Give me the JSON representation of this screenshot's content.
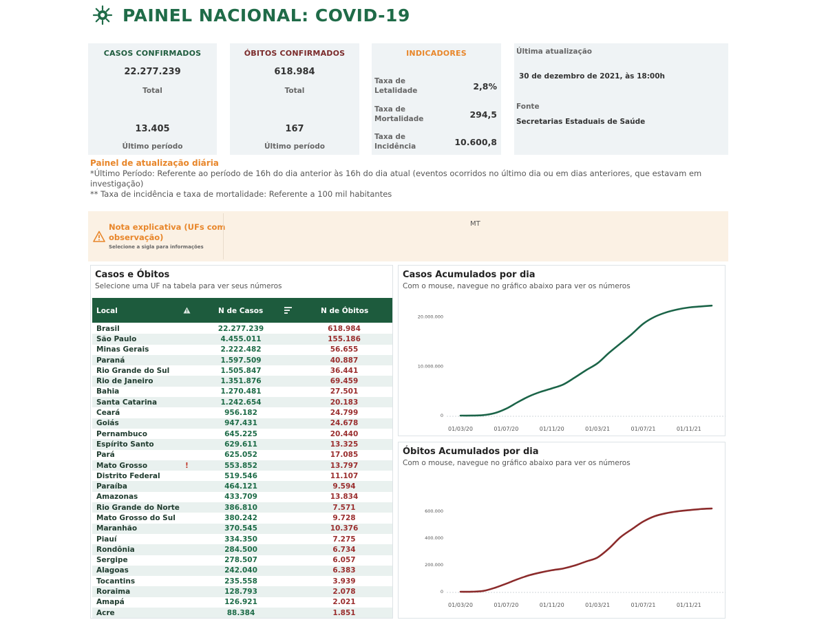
{
  "header": {
    "title": "PAINEL NACIONAL: COVID-19",
    "logo_icon": "virus-icon"
  },
  "cards": {
    "casos": {
      "title": "CASOS CONFIRMADOS",
      "total": "22.277.239",
      "total_label": "Total",
      "ultimo": "13.405",
      "ultimo_label": "Último período",
      "color": "#1f5c3e"
    },
    "obitos": {
      "title": "ÓBITOS CONFIRMADOS",
      "total": "618.984",
      "total_label": "Total",
      "ultimo": "167",
      "ultimo_label": "Último período",
      "color": "#7a2a2a"
    },
    "indicadores": {
      "title": "INDICADORES",
      "color": "#e8862a",
      "rows": [
        {
          "label": "Taxa de Letalidade",
          "value": "2,8%"
        },
        {
          "label": "Taxa de Mortalidade",
          "value": "294,5"
        },
        {
          "label": "Taxa de Incidência",
          "value": "10.600,8"
        }
      ]
    },
    "atualizacao": {
      "label": "Última atualização",
      "value": "30 de dezembro de 2021, às 18:00h",
      "fonte_label": "Fonte",
      "fonte": "Secretarias Estaduais de Saúde"
    }
  },
  "notes": {
    "title": "Painel de atualização diária",
    "line1": "*Último Período: Referente ao período de 16h do dia anterior às 16h do dia atual (eventos ocorridos no último dia ou em dias anteriores, que estavam em investigação)",
    "line2": "** Taxa de incidência e taxa de mortalidade: Referente a 100 mil habitantes"
  },
  "nota": {
    "title": "Nota explicativa (UFs com observação)",
    "subtitle": "Selecione a sigla para informações",
    "selected": "MT"
  },
  "table_panel": {
    "title": "Casos e Óbitos",
    "subtitle": "Selecione uma UF na tabela para ver seus números",
    "columns": {
      "local": "Local",
      "casos": "N de Casos",
      "obitos": "N de Óbitos"
    },
    "rows": [
      {
        "local": "Brasil",
        "casos": "22.277.239",
        "obitos": "618.984",
        "flag": ""
      },
      {
        "local": "São Paulo",
        "casos": "4.455.011",
        "obitos": "155.186",
        "flag": ""
      },
      {
        "local": "Minas Gerais",
        "casos": "2.222.482",
        "obitos": "56.655",
        "flag": ""
      },
      {
        "local": "Paraná",
        "casos": "1.597.509",
        "obitos": "40.887",
        "flag": ""
      },
      {
        "local": "Rio Grande do Sul",
        "casos": "1.505.847",
        "obitos": "36.441",
        "flag": ""
      },
      {
        "local": "Rio de Janeiro",
        "casos": "1.351.876",
        "obitos": "69.459",
        "flag": ""
      },
      {
        "local": "Bahia",
        "casos": "1.270.481",
        "obitos": "27.501",
        "flag": ""
      },
      {
        "local": "Santa Catarina",
        "casos": "1.242.654",
        "obitos": "20.183",
        "flag": ""
      },
      {
        "local": "Ceará",
        "casos": "956.182",
        "obitos": "24.799",
        "flag": ""
      },
      {
        "local": "Goiás",
        "casos": "947.431",
        "obitos": "24.678",
        "flag": ""
      },
      {
        "local": "Pernambuco",
        "casos": "645.225",
        "obitos": "20.440",
        "flag": ""
      },
      {
        "local": "Espírito Santo",
        "casos": "629.611",
        "obitos": "13.325",
        "flag": ""
      },
      {
        "local": "Pará",
        "casos": "625.052",
        "obitos": "17.085",
        "flag": ""
      },
      {
        "local": "Mato Grosso",
        "casos": "553.852",
        "obitos": "13.797",
        "flag": "!"
      },
      {
        "local": "Distrito Federal",
        "casos": "519.546",
        "obitos": "11.107",
        "flag": ""
      },
      {
        "local": "Paraíba",
        "casos": "464.121",
        "obitos": "9.594",
        "flag": ""
      },
      {
        "local": "Amazonas",
        "casos": "433.709",
        "obitos": "13.834",
        "flag": ""
      },
      {
        "local": "Rio Grande do Norte",
        "casos": "386.810",
        "obitos": "7.571",
        "flag": ""
      },
      {
        "local": "Mato Grosso do Sul",
        "casos": "380.242",
        "obitos": "9.728",
        "flag": ""
      },
      {
        "local": "Maranhão",
        "casos": "370.545",
        "obitos": "10.376",
        "flag": ""
      },
      {
        "local": "Piauí",
        "casos": "334.350",
        "obitos": "7.275",
        "flag": ""
      },
      {
        "local": "Rondônia",
        "casos": "284.500",
        "obitos": "6.734",
        "flag": ""
      },
      {
        "local": "Sergipe",
        "casos": "278.507",
        "obitos": "6.057",
        "flag": ""
      },
      {
        "local": "Alagoas",
        "casos": "242.040",
        "obitos": "6.383",
        "flag": ""
      },
      {
        "local": "Tocantins",
        "casos": "235.558",
        "obitos": "3.939",
        "flag": ""
      },
      {
        "local": "Roraima",
        "casos": "128.793",
        "obitos": "2.078",
        "flag": ""
      },
      {
        "local": "Amapá",
        "casos": "126.921",
        "obitos": "2.021",
        "flag": ""
      },
      {
        "local": "Acre",
        "casos": "88.384",
        "obitos": "1.851",
        "flag": ""
      }
    ]
  },
  "chart_casos": {
    "title": "Casos Acumulados por dia",
    "subtitle": "Com o mouse, navegue no gráfico abaixo para ver os números"
  },
  "chart_obitos": {
    "title": "Óbitos Acumulados por dia",
    "subtitle": "Com o mouse, navegue no gráfico abaixo para ver os números"
  },
  "chart_data": [
    {
      "type": "line",
      "title": "Casos Acumulados por dia",
      "color": "#1b6448",
      "x_ticks": [
        "01/03/20",
        "01/07/20",
        "01/11/20",
        "01/03/21",
        "01/07/21",
        "01/11/21"
      ],
      "y_ticks": [
        "0",
        "10.000.000",
        "20.000.000"
      ],
      "ylim": [
        0,
        23000000
      ],
      "grid": false,
      "x": [
        "01/03/20",
        "01/04/20",
        "01/05/20",
        "01/06/20",
        "01/07/20",
        "01/08/20",
        "01/09/20",
        "01/10/20",
        "01/11/20",
        "01/12/20",
        "01/01/21",
        "01/02/21",
        "01/03/21",
        "01/04/21",
        "01/05/21",
        "01/06/21",
        "01/07/21",
        "01/08/21",
        "01/09/21",
        "01/10/21",
        "01/11/21",
        "01/12/21",
        "30/12/21"
      ],
      "values": [
        0,
        6000,
        90000,
        500000,
        1400000,
        2700000,
        3900000,
        4800000,
        5500000,
        6300000,
        7700000,
        9200000,
        10600000,
        12700000,
        14600000,
        16500000,
        18600000,
        20000000,
        20900000,
        21500000,
        21900000,
        22100000,
        22277239
      ]
    },
    {
      "type": "line",
      "title": "Óbitos Acumulados por dia",
      "color": "#8b2b2b",
      "x_ticks": [
        "01/03/20",
        "01/07/20",
        "01/11/20",
        "01/03/21",
        "01/07/21",
        "01/11/21"
      ],
      "y_ticks": [
        "0",
        "200.000",
        "400.000",
        "600.000"
      ],
      "ylim": [
        0,
        640000
      ],
      "grid": false,
      "x": [
        "01/03/20",
        "01/04/20",
        "01/05/20",
        "01/06/20",
        "01/07/20",
        "01/08/20",
        "01/09/20",
        "01/10/20",
        "01/11/20",
        "01/12/20",
        "01/01/21",
        "01/02/21",
        "01/03/21",
        "01/04/21",
        "01/05/21",
        "01/06/21",
        "01/07/21",
        "01/08/21",
        "01/09/21",
        "01/10/21",
        "01/11/21",
        "01/12/21",
        "30/12/21"
      ],
      "values": [
        0,
        200,
        6000,
        29000,
        60000,
        93000,
        122000,
        143000,
        160000,
        173000,
        195000,
        225000,
        255000,
        322000,
        405000,
        465000,
        522000,
        562000,
        584000,
        598000,
        607000,
        615000,
        618984
      ]
    }
  ]
}
